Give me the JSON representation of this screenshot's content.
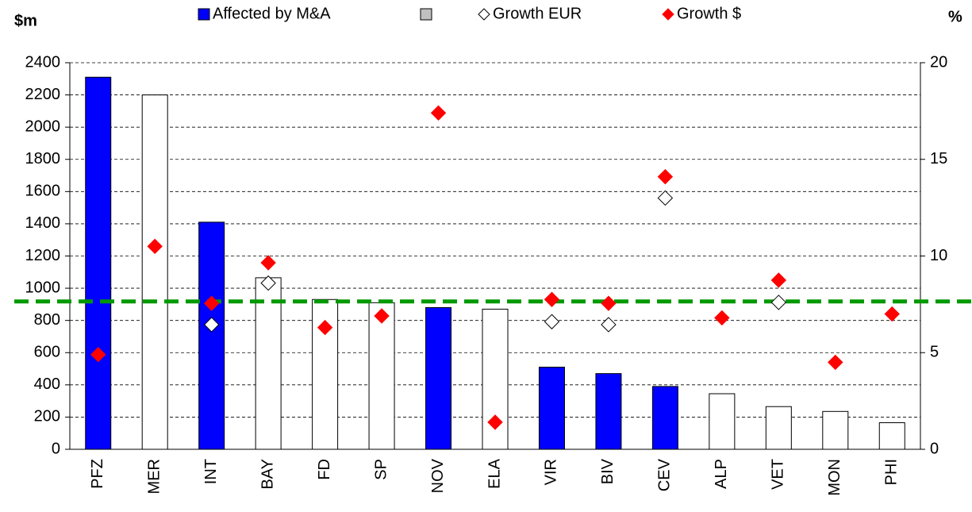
{
  "chart_data": {
    "type": "bar",
    "y_label": "$m",
    "y2_label": "%",
    "categories": [
      "PFZ",
      "MER",
      "INT",
      "BAY",
      "FD",
      "SP",
      "NOV",
      "ELA",
      "VIR",
      "BIV",
      "CEV",
      "ALP",
      "VET",
      "MON",
      "PHI"
    ],
    "series": [
      {
        "name": "Affected by M&A",
        "color": "#0000ff",
        "values": [
          2310,
          null,
          1410,
          null,
          null,
          null,
          880,
          null,
          510,
          470,
          390,
          null,
          null,
          null,
          null
        ]
      },
      {
        "name": null,
        "color": "#ffffff",
        "legend_color": "#c0c0c0",
        "values": [
          null,
          2200,
          null,
          1065,
          930,
          910,
          null,
          870,
          null,
          null,
          null,
          345,
          265,
          235,
          165
        ]
      },
      {
        "name": "Growth EUR",
        "type": "scatter",
        "axis": "y2",
        "color": "#ffffff",
        "values": [
          null,
          null,
          6.45,
          8.6,
          null,
          null,
          null,
          null,
          6.6,
          6.45,
          13.0,
          null,
          7.6,
          null,
          null
        ]
      },
      {
        "name": "Growth $",
        "type": "scatter",
        "axis": "y2",
        "color": "#ff0000",
        "values": [
          4.9,
          10.5,
          7.55,
          9.65,
          6.3,
          6.9,
          17.4,
          1.4,
          7.75,
          7.55,
          14.1,
          6.8,
          8.75,
          4.5,
          7.0
        ]
      }
    ],
    "reference_line": {
      "value": 7.65,
      "axis": "y2",
      "color": "#009900"
    },
    "ylim": [
      0,
      2400
    ],
    "yticks": [
      0,
      200,
      400,
      600,
      800,
      1000,
      1200,
      1400,
      1600,
      1800,
      2000,
      2200,
      2400
    ],
    "y2lim": [
      0,
      20
    ],
    "y2ticks": [
      0,
      5,
      10,
      15,
      20
    ],
    "grid": true
  }
}
